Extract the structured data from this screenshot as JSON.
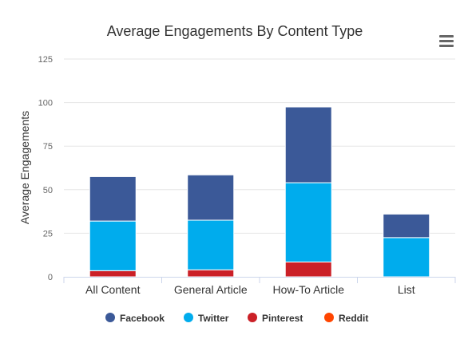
{
  "colors": {
    "facebook": "#3b5998",
    "twitter": "#00aced",
    "pinterest": "#cb2027",
    "reddit": "#ff4500",
    "grid": "#e6e6e6",
    "axis": "#ccd6eb",
    "text": "#333333",
    "tick_text": "#666666"
  },
  "menu_icon": "hamburger-icon",
  "chart_data": {
    "type": "bar",
    "stacked": true,
    "title": "Average Engagements By Content Type",
    "xlabel": "",
    "ylabel": "Average Engagements",
    "ylim": [
      0,
      125
    ],
    "yticks": [
      0,
      25,
      50,
      75,
      100,
      125
    ],
    "grid": true,
    "legend_position": "bottom",
    "categories": [
      "All Content",
      "General Article",
      "How-To Article",
      "List"
    ],
    "series": [
      {
        "name": "Reddit",
        "key": "reddit",
        "values": [
          0,
          0,
          0,
          0
        ]
      },
      {
        "name": "Pinterest",
        "key": "pinterest",
        "values": [
          3.5,
          4,
          8.5,
          0
        ]
      },
      {
        "name": "Twitter",
        "key": "twitter",
        "values": [
          28.5,
          28.5,
          45.5,
          22.5
        ]
      },
      {
        "name": "Facebook",
        "key": "facebook",
        "values": [
          25.5,
          26,
          43.5,
          13.5
        ]
      }
    ],
    "legend_order": [
      "Facebook",
      "Twitter",
      "Pinterest",
      "Reddit"
    ]
  }
}
